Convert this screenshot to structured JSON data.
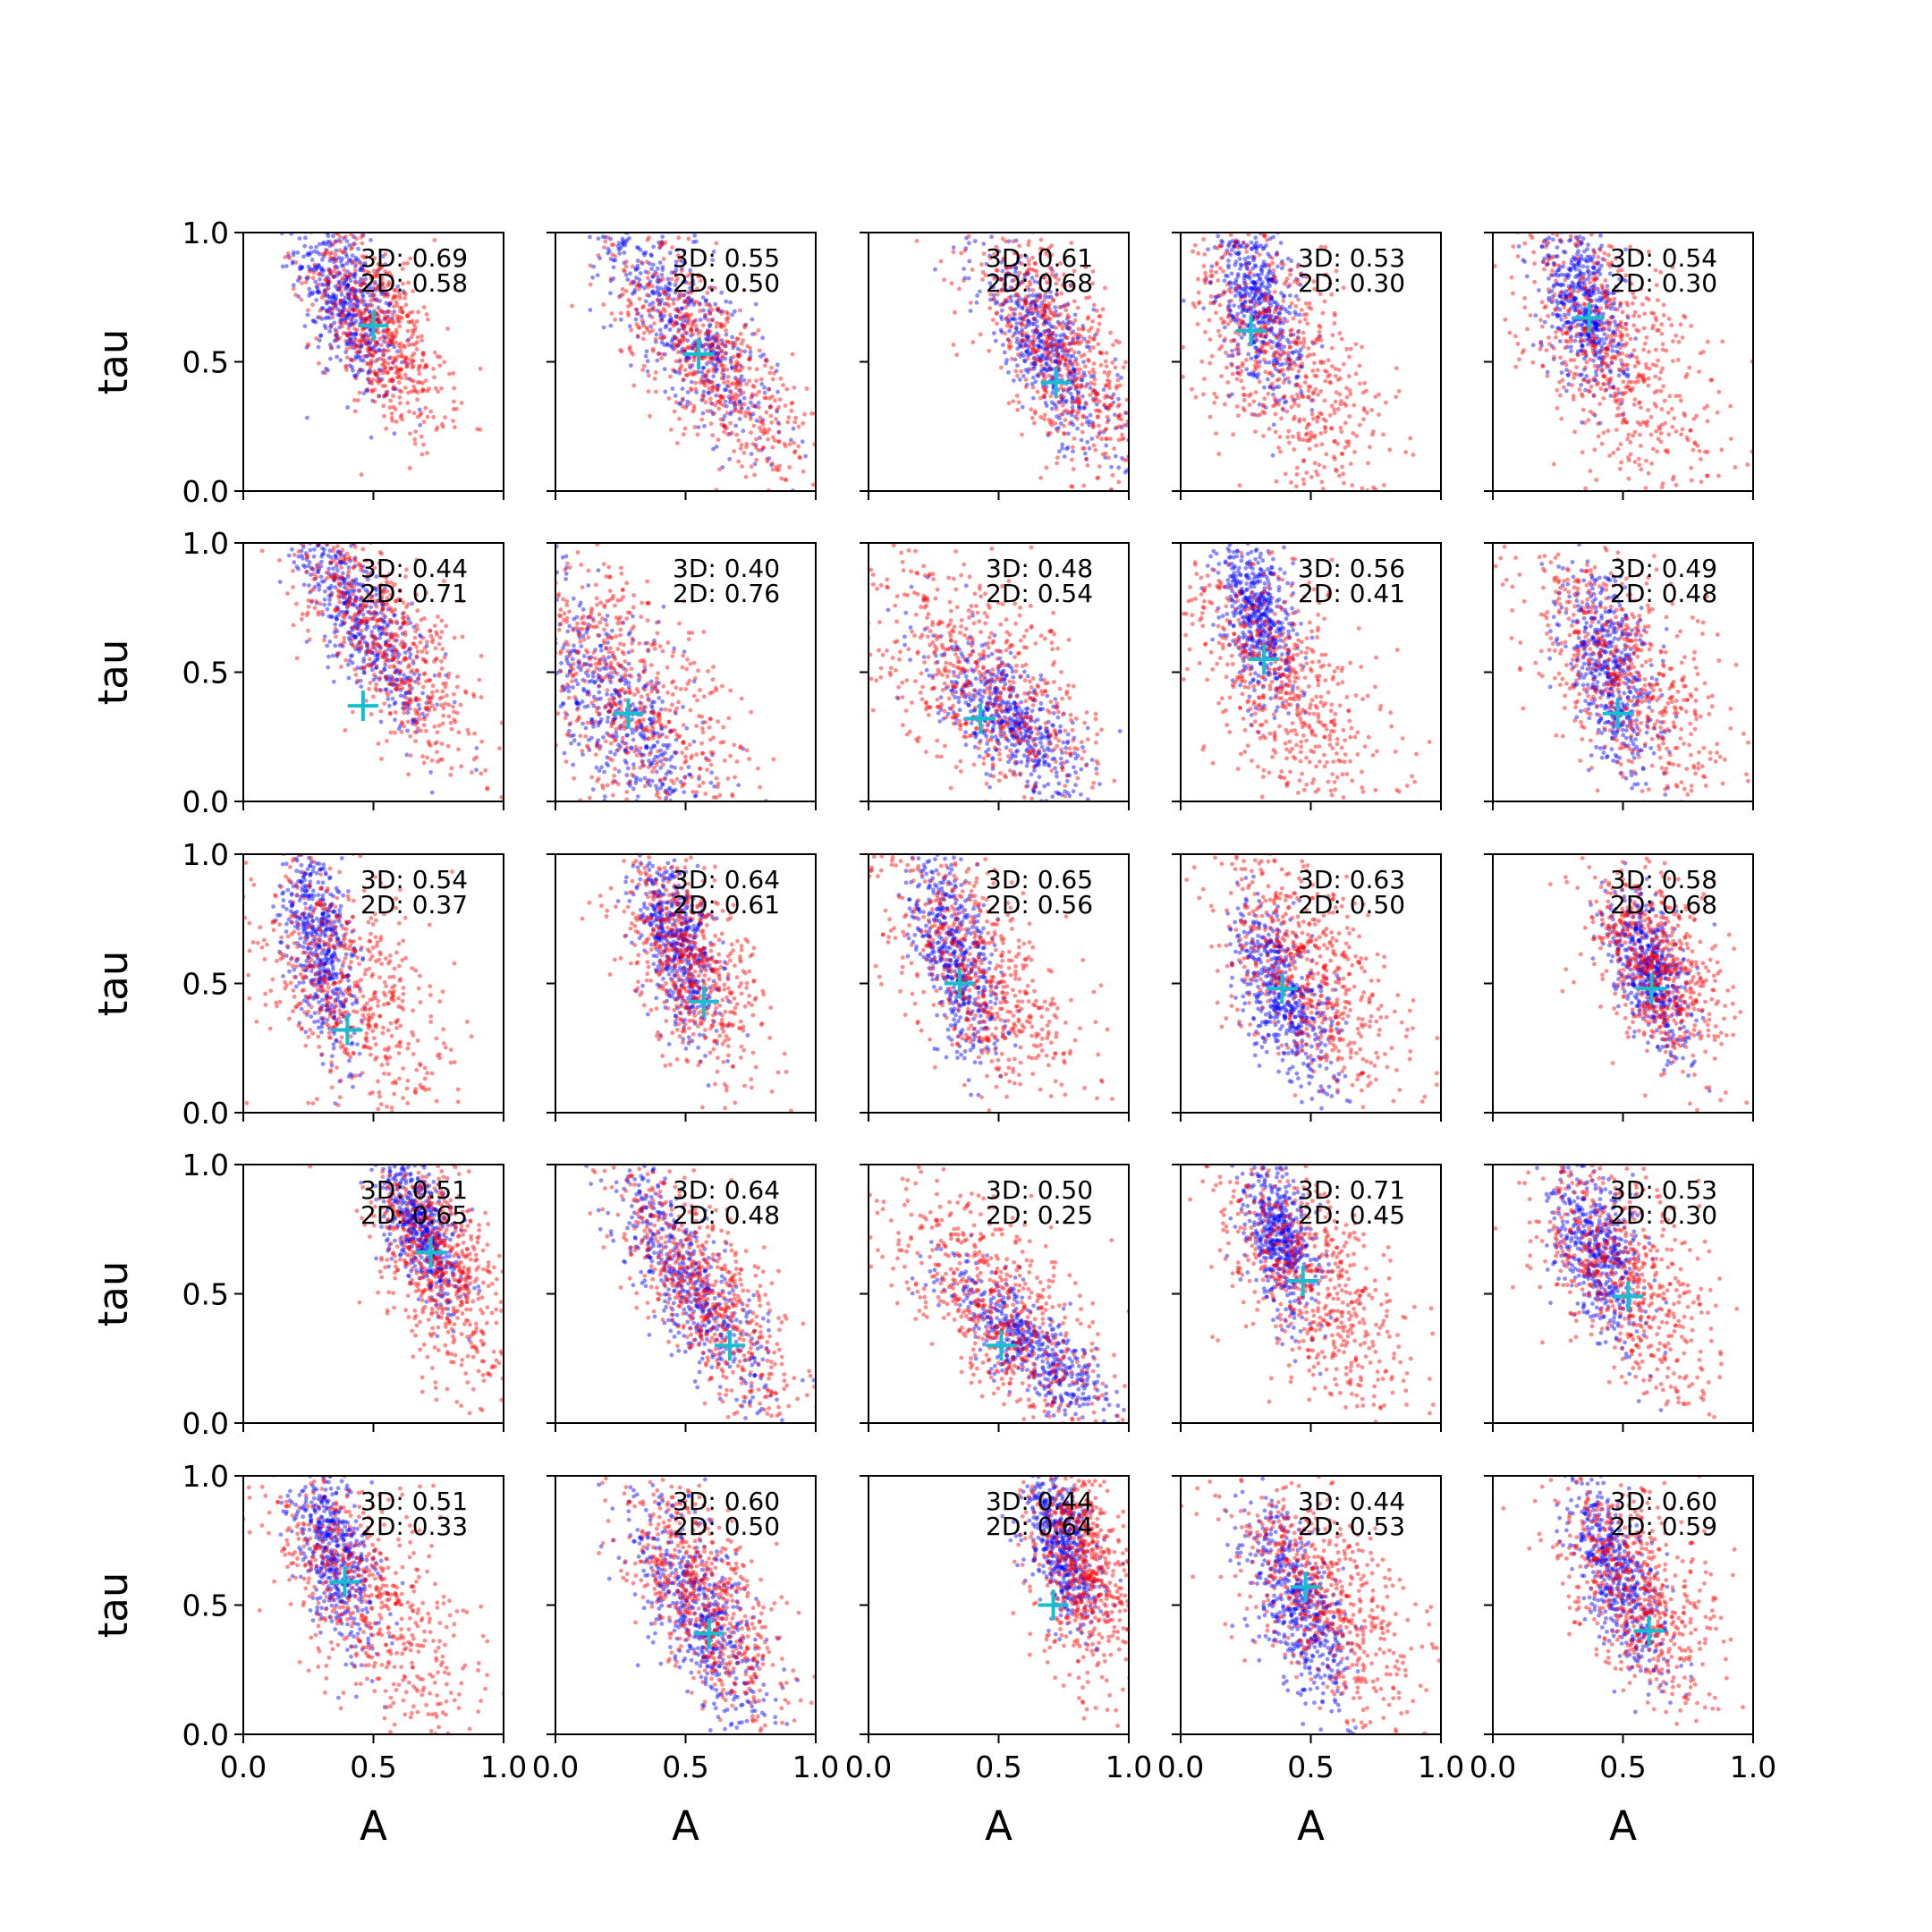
{
  "figure": {
    "xlabel": "A",
    "ylabel": "tau"
  },
  "chart_data": {
    "type": "scatter",
    "rows": 5,
    "cols": 5,
    "xlim": [
      0,
      1
    ],
    "ylim": [
      0,
      1
    ],
    "xticks": [
      "0.0",
      "0.5",
      "1.0"
    ],
    "yticks": [
      "0.0",
      "0.5",
      "1.0"
    ],
    "xlabel": "A",
    "ylabel": "tau",
    "colors": {
      "series_3d": "#0000ff",
      "series_2d": "#ff0000",
      "marker": "#17becf"
    },
    "panels": [
      {
        "label_3d": "3D: 0.69",
        "label_2d": "2D: 0.58",
        "marker": [
          0.5,
          0.64
        ],
        "blue": {
          "cx": 0.4,
          "cy": 0.72,
          "sx": 0.1,
          "sy": 0.18,
          "rho": -0.6
        },
        "red": {
          "cx": 0.52,
          "cy": 0.62,
          "sx": 0.13,
          "sy": 0.2,
          "rho": -0.6
        }
      },
      {
        "label_3d": "3D: 0.55",
        "label_2d": "2D: 0.50",
        "marker": [
          0.55,
          0.53
        ],
        "blue": {
          "cx": 0.5,
          "cy": 0.65,
          "sx": 0.18,
          "sy": 0.25,
          "rho": -0.8
        },
        "red": {
          "cx": 0.6,
          "cy": 0.5,
          "sx": 0.2,
          "sy": 0.25,
          "rho": -0.75
        }
      },
      {
        "label_3d": "3D: 0.61",
        "label_2d": "2D: 0.68",
        "marker": [
          0.72,
          0.42
        ],
        "blue": {
          "cx": 0.68,
          "cy": 0.55,
          "sx": 0.14,
          "sy": 0.22,
          "rho": -0.8
        },
        "red": {
          "cx": 0.72,
          "cy": 0.55,
          "sx": 0.16,
          "sy": 0.25,
          "rho": -0.7
        }
      },
      {
        "label_3d": "3D: 0.53",
        "label_2d": "2D: 0.30",
        "marker": [
          0.27,
          0.62
        ],
        "blue": {
          "cx": 0.3,
          "cy": 0.72,
          "sx": 0.08,
          "sy": 0.18,
          "rho": -0.4
        },
        "red": {
          "cx": 0.4,
          "cy": 0.5,
          "sx": 0.2,
          "sy": 0.28,
          "rho": -0.6
        }
      },
      {
        "label_3d": "3D: 0.54",
        "label_2d": "2D: 0.30",
        "marker": [
          0.37,
          0.67
        ],
        "blue": {
          "cx": 0.35,
          "cy": 0.72,
          "sx": 0.08,
          "sy": 0.18,
          "rho": -0.4
        },
        "red": {
          "cx": 0.45,
          "cy": 0.55,
          "sx": 0.2,
          "sy": 0.28,
          "rho": -0.6
        }
      },
      {
        "label_3d": "3D: 0.44",
        "label_2d": "2D: 0.71",
        "marker": [
          0.46,
          0.37
        ],
        "blue": {
          "cx": 0.45,
          "cy": 0.7,
          "sx": 0.14,
          "sy": 0.22,
          "rho": -0.8
        },
        "red": {
          "cx": 0.55,
          "cy": 0.62,
          "sx": 0.18,
          "sy": 0.25,
          "rho": -0.75
        }
      },
      {
        "label_3d": "3D: 0.40",
        "label_2d": "2D: 0.76",
        "marker": [
          0.28,
          0.34
        ],
        "blue": {
          "cx": 0.25,
          "cy": 0.35,
          "sx": 0.18,
          "sy": 0.25,
          "rho": -0.7
        },
        "red": {
          "cx": 0.3,
          "cy": 0.4,
          "sx": 0.22,
          "sy": 0.28,
          "rho": -0.6
        }
      },
      {
        "label_3d": "3D: 0.48",
        "label_2d": "2D: 0.54",
        "marker": [
          0.43,
          0.32
        ],
        "blue": {
          "cx": 0.55,
          "cy": 0.3,
          "sx": 0.15,
          "sy": 0.15,
          "rho": -0.7
        },
        "red": {
          "cx": 0.45,
          "cy": 0.45,
          "sx": 0.22,
          "sy": 0.25,
          "rho": -0.6
        }
      },
      {
        "label_3d": "3D: 0.56",
        "label_2d": "2D: 0.41",
        "marker": [
          0.32,
          0.55
        ],
        "blue": {
          "cx": 0.3,
          "cy": 0.72,
          "sx": 0.07,
          "sy": 0.16,
          "rho": -0.4
        },
        "red": {
          "cx": 0.4,
          "cy": 0.45,
          "sx": 0.2,
          "sy": 0.28,
          "rho": -0.6
        }
      },
      {
        "label_3d": "3D: 0.49",
        "label_2d": "2D: 0.48",
        "marker": [
          0.48,
          0.34
        ],
        "blue": {
          "cx": 0.45,
          "cy": 0.5,
          "sx": 0.09,
          "sy": 0.2,
          "rho": -0.5
        },
        "red": {
          "cx": 0.5,
          "cy": 0.5,
          "sx": 0.2,
          "sy": 0.25,
          "rho": -0.6
        }
      },
      {
        "label_3d": "3D: 0.54",
        "label_2d": "2D: 0.37",
        "marker": [
          0.4,
          0.32
        ],
        "blue": {
          "cx": 0.3,
          "cy": 0.65,
          "sx": 0.07,
          "sy": 0.2,
          "rho": -0.5
        },
        "red": {
          "cx": 0.38,
          "cy": 0.48,
          "sx": 0.2,
          "sy": 0.28,
          "rho": -0.5
        }
      },
      {
        "label_3d": "3D: 0.64",
        "label_2d": "2D: 0.61",
        "marker": [
          0.57,
          0.43
        ],
        "blue": {
          "cx": 0.47,
          "cy": 0.65,
          "sx": 0.08,
          "sy": 0.18,
          "rho": -0.5
        },
        "red": {
          "cx": 0.52,
          "cy": 0.58,
          "sx": 0.14,
          "sy": 0.22,
          "rho": -0.5
        }
      },
      {
        "label_3d": "3D: 0.65",
        "label_2d": "2D: 0.56",
        "marker": [
          0.35,
          0.5
        ],
        "blue": {
          "cx": 0.33,
          "cy": 0.62,
          "sx": 0.09,
          "sy": 0.2,
          "rho": -0.6
        },
        "red": {
          "cx": 0.42,
          "cy": 0.55,
          "sx": 0.18,
          "sy": 0.25,
          "rho": -0.6
        }
      },
      {
        "label_3d": "3D: 0.63",
        "label_2d": "2D: 0.50",
        "marker": [
          0.39,
          0.48
        ],
        "blue": {
          "cx": 0.4,
          "cy": 0.45,
          "sx": 0.1,
          "sy": 0.18,
          "rho": -0.6
        },
        "red": {
          "cx": 0.48,
          "cy": 0.55,
          "sx": 0.18,
          "sy": 0.25,
          "rho": -0.6
        }
      },
      {
        "label_3d": "3D: 0.58",
        "label_2d": "2D: 0.68",
        "marker": [
          0.61,
          0.48
        ],
        "blue": {
          "cx": 0.6,
          "cy": 0.55,
          "sx": 0.08,
          "sy": 0.15,
          "rho": -0.5
        },
        "red": {
          "cx": 0.62,
          "cy": 0.58,
          "sx": 0.13,
          "sy": 0.2,
          "rho": -0.5
        }
      },
      {
        "label_3d": "3D: 0.51",
        "label_2d": "2D: 0.65",
        "marker": [
          0.72,
          0.66
        ],
        "blue": {
          "cx": 0.68,
          "cy": 0.75,
          "sx": 0.08,
          "sy": 0.15,
          "rho": -0.6
        },
        "red": {
          "cx": 0.75,
          "cy": 0.6,
          "sx": 0.12,
          "sy": 0.22,
          "rho": -0.5
        }
      },
      {
        "label_3d": "3D: 0.64",
        "label_2d": "2D: 0.48",
        "marker": [
          0.67,
          0.3
        ],
        "blue": {
          "cx": 0.5,
          "cy": 0.55,
          "sx": 0.15,
          "sy": 0.25,
          "rho": -0.8
        },
        "red": {
          "cx": 0.58,
          "cy": 0.5,
          "sx": 0.18,
          "sy": 0.25,
          "rho": -0.75
        }
      },
      {
        "label_3d": "3D: 0.50",
        "label_2d": "2D: 0.25",
        "marker": [
          0.51,
          0.3
        ],
        "blue": {
          "cx": 0.62,
          "cy": 0.3,
          "sx": 0.15,
          "sy": 0.15,
          "rho": -0.8
        },
        "red": {
          "cx": 0.5,
          "cy": 0.45,
          "sx": 0.22,
          "sy": 0.25,
          "rho": -0.7
        }
      },
      {
        "label_3d": "3D: 0.71",
        "label_2d": "2D: 0.45",
        "marker": [
          0.47,
          0.55
        ],
        "blue": {
          "cx": 0.38,
          "cy": 0.72,
          "sx": 0.07,
          "sy": 0.15,
          "rho": -0.4
        },
        "red": {
          "cx": 0.5,
          "cy": 0.55,
          "sx": 0.18,
          "sy": 0.25,
          "rho": -0.6
        }
      },
      {
        "label_3d": "3D: 0.53",
        "label_2d": "2D: 0.30",
        "marker": [
          0.52,
          0.49
        ],
        "blue": {
          "cx": 0.4,
          "cy": 0.68,
          "sx": 0.09,
          "sy": 0.18,
          "rho": -0.5
        },
        "red": {
          "cx": 0.5,
          "cy": 0.58,
          "sx": 0.18,
          "sy": 0.25,
          "rho": -0.6
        }
      },
      {
        "label_3d": "3D: 0.51",
        "label_2d": "2D: 0.33",
        "marker": [
          0.39,
          0.59
        ],
        "blue": {
          "cx": 0.35,
          "cy": 0.7,
          "sx": 0.08,
          "sy": 0.18,
          "rho": -0.5
        },
        "red": {
          "cx": 0.48,
          "cy": 0.55,
          "sx": 0.2,
          "sy": 0.28,
          "rho": -0.6
        }
      },
      {
        "label_3d": "3D: 0.60",
        "label_2d": "2D: 0.50",
        "marker": [
          0.59,
          0.39
        ],
        "blue": {
          "cx": 0.55,
          "cy": 0.45,
          "sx": 0.13,
          "sy": 0.22,
          "rho": -0.7
        },
        "red": {
          "cx": 0.58,
          "cy": 0.5,
          "sx": 0.16,
          "sy": 0.24,
          "rho": -0.7
        }
      },
      {
        "label_3d": "3D: 0.44",
        "label_2d": "2D: 0.64",
        "marker": [
          0.71,
          0.5
        ],
        "blue": {
          "cx": 0.75,
          "cy": 0.72,
          "sx": 0.07,
          "sy": 0.16,
          "rho": -0.4
        },
        "red": {
          "cx": 0.82,
          "cy": 0.65,
          "sx": 0.1,
          "sy": 0.22,
          "rho": -0.4
        }
      },
      {
        "label_3d": "3D: 0.44",
        "label_2d": "2D: 0.53",
        "marker": [
          0.48,
          0.57
        ],
        "blue": {
          "cx": 0.45,
          "cy": 0.5,
          "sx": 0.1,
          "sy": 0.2,
          "rho": -0.6
        },
        "red": {
          "cx": 0.55,
          "cy": 0.55,
          "sx": 0.18,
          "sy": 0.25,
          "rho": -0.6
        }
      },
      {
        "label_3d": "3D: 0.60",
        "label_2d": "2D: 0.59",
        "marker": [
          0.6,
          0.4
        ],
        "blue": {
          "cx": 0.48,
          "cy": 0.62,
          "sx": 0.1,
          "sy": 0.2,
          "rho": -0.7
        },
        "red": {
          "cx": 0.55,
          "cy": 0.55,
          "sx": 0.16,
          "sy": 0.24,
          "rho": -0.6
        }
      }
    ]
  }
}
